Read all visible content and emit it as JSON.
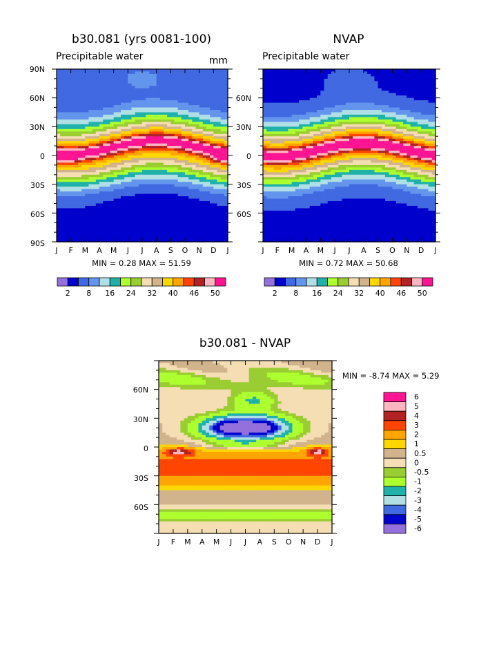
{
  "chart_data": [
    {
      "type": "heatmap",
      "id": "model",
      "title": "b30.081 (yrs 0081-100)",
      "subtitle": "Precipitable water",
      "units": "mm",
      "xlabels": [
        "J",
        "F",
        "M",
        "A",
        "M",
        "J",
        "J",
        "A",
        "S",
        "O",
        "N",
        "D",
        "J"
      ],
      "ylabels": [
        "90N",
        "60N",
        "30N",
        "0",
        "30S",
        "60S",
        "90S"
      ],
      "ylim": [
        -90,
        90
      ],
      "minmax": "MIN =     0.28  MAX =   51.59",
      "colorbar_labels": [
        "2",
        "8",
        "16",
        "24",
        "32",
        "40",
        "46",
        "50"
      ],
      "colors": [
        "#9370db",
        "#0000cd",
        "#4169e1",
        "#6495ed",
        "#b0e0e6",
        "#20b2aa",
        "#adff2f",
        "#9acd32",
        "#f5deb3",
        "#d2b48c",
        "#ffd700",
        "#ffa500",
        "#ff4500",
        "#b22222",
        "#ffb6c1",
        "#ff1493"
      ],
      "levels": [
        2,
        4,
        8,
        12,
        16,
        20,
        24,
        28,
        32,
        36,
        40,
        44,
        46,
        48,
        50
      ],
      "data_range": [
        0.28,
        51.59
      ]
    },
    {
      "type": "heatmap",
      "id": "obs",
      "title": "NVAP",
      "subtitle": "Precipitable water",
      "xlabels": [
        "J",
        "F",
        "M",
        "A",
        "M",
        "J",
        "J",
        "A",
        "S",
        "O",
        "N",
        "D",
        "J"
      ],
      "ylabels": [
        "60N",
        "30N",
        "0",
        "30S",
        "60S"
      ],
      "ylim": [
        -90,
        90
      ],
      "minmax": "MIN =     0.72  MAX =   50.68",
      "colorbar_labels": [
        "2",
        "8",
        "16",
        "24",
        "32",
        "40",
        "46",
        "50"
      ],
      "colors": [
        "#9370db",
        "#0000cd",
        "#4169e1",
        "#6495ed",
        "#b0e0e6",
        "#20b2aa",
        "#adff2f",
        "#9acd32",
        "#f5deb3",
        "#d2b48c",
        "#ffd700",
        "#ffa500",
        "#ff4500",
        "#b22222",
        "#ffb6c1",
        "#ff1493"
      ],
      "levels": [
        2,
        4,
        8,
        12,
        16,
        20,
        24,
        28,
        32,
        36,
        40,
        44,
        46,
        48,
        50
      ],
      "data_range": [
        0.72,
        50.68
      ]
    },
    {
      "type": "heatmap",
      "id": "diff",
      "title": "b30.081 - NVAP",
      "xlabels": [
        "J",
        "F",
        "M",
        "A",
        "M",
        "J",
        "J",
        "A",
        "S",
        "O",
        "N",
        "D",
        "J"
      ],
      "ylabels": [
        "60N",
        "30N",
        "0",
        "30S",
        "60S"
      ],
      "ylim": [
        -90,
        90
      ],
      "minmax": "MIN =   -8.74  MAX =     5.29",
      "colorbar_labels": [
        "6",
        "5",
        "4",
        "3",
        "2",
        "1",
        "0.5",
        "0",
        "-0.5",
        "-1",
        "-2",
        "-3",
        "-4",
        "-5",
        "-6"
      ],
      "colors": [
        "#ff1493",
        "#ffb6c1",
        "#b22222",
        "#ff4500",
        "#ffa500",
        "#ffd700",
        "#d2b48c",
        "#f5deb3",
        "#9acd32",
        "#adff2f",
        "#20b2aa",
        "#b0e0e6",
        "#4169e1",
        "#0000cd",
        "#9370db"
      ],
      "levels": [
        -6,
        -5,
        -4,
        -3,
        -2,
        -1,
        -0.5,
        0,
        0.5,
        1,
        2,
        3,
        4,
        5,
        6
      ],
      "data_range": [
        -8.74,
        5.29
      ]
    }
  ]
}
